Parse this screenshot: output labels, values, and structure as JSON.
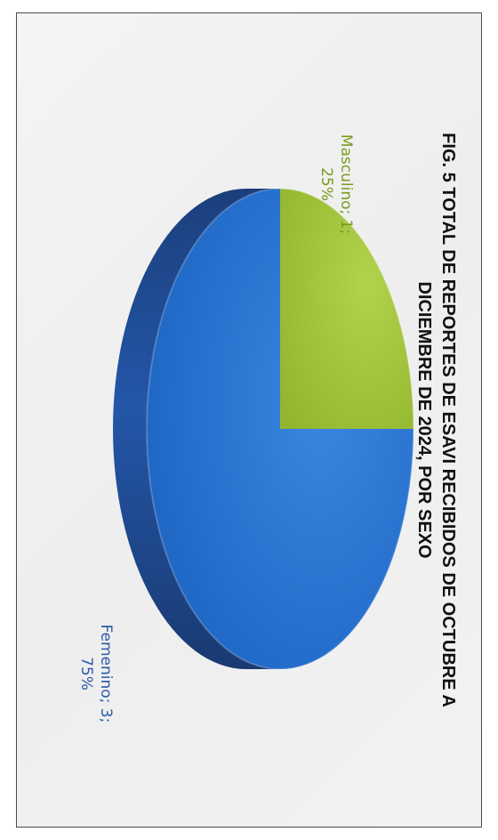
{
  "chart_data": {
    "type": "pie",
    "title_lines": [
      "FIG. 5 TOTAL DE REPORTES DE ESAVI RECIBIDOS DE OCTUBRE A",
      "DICIEMBRE DE 2024, POR SEXO"
    ],
    "categories": [
      "Masculino",
      "Femenino"
    ],
    "values": [
      1,
      3
    ],
    "data_labels": [
      "Masculino; 1; 25%",
      "Femenino; 3; 75%"
    ],
    "label_lines": [
      [
        "Masculino; 1;",
        "25%"
      ],
      [
        "Femenino; 3;",
        "75%"
      ]
    ],
    "colors": [
      "#9cc03a",
      "#1f6cc8"
    ],
    "style": "3d-pie",
    "rotation": "page rotated 90 degrees clockwise"
  }
}
